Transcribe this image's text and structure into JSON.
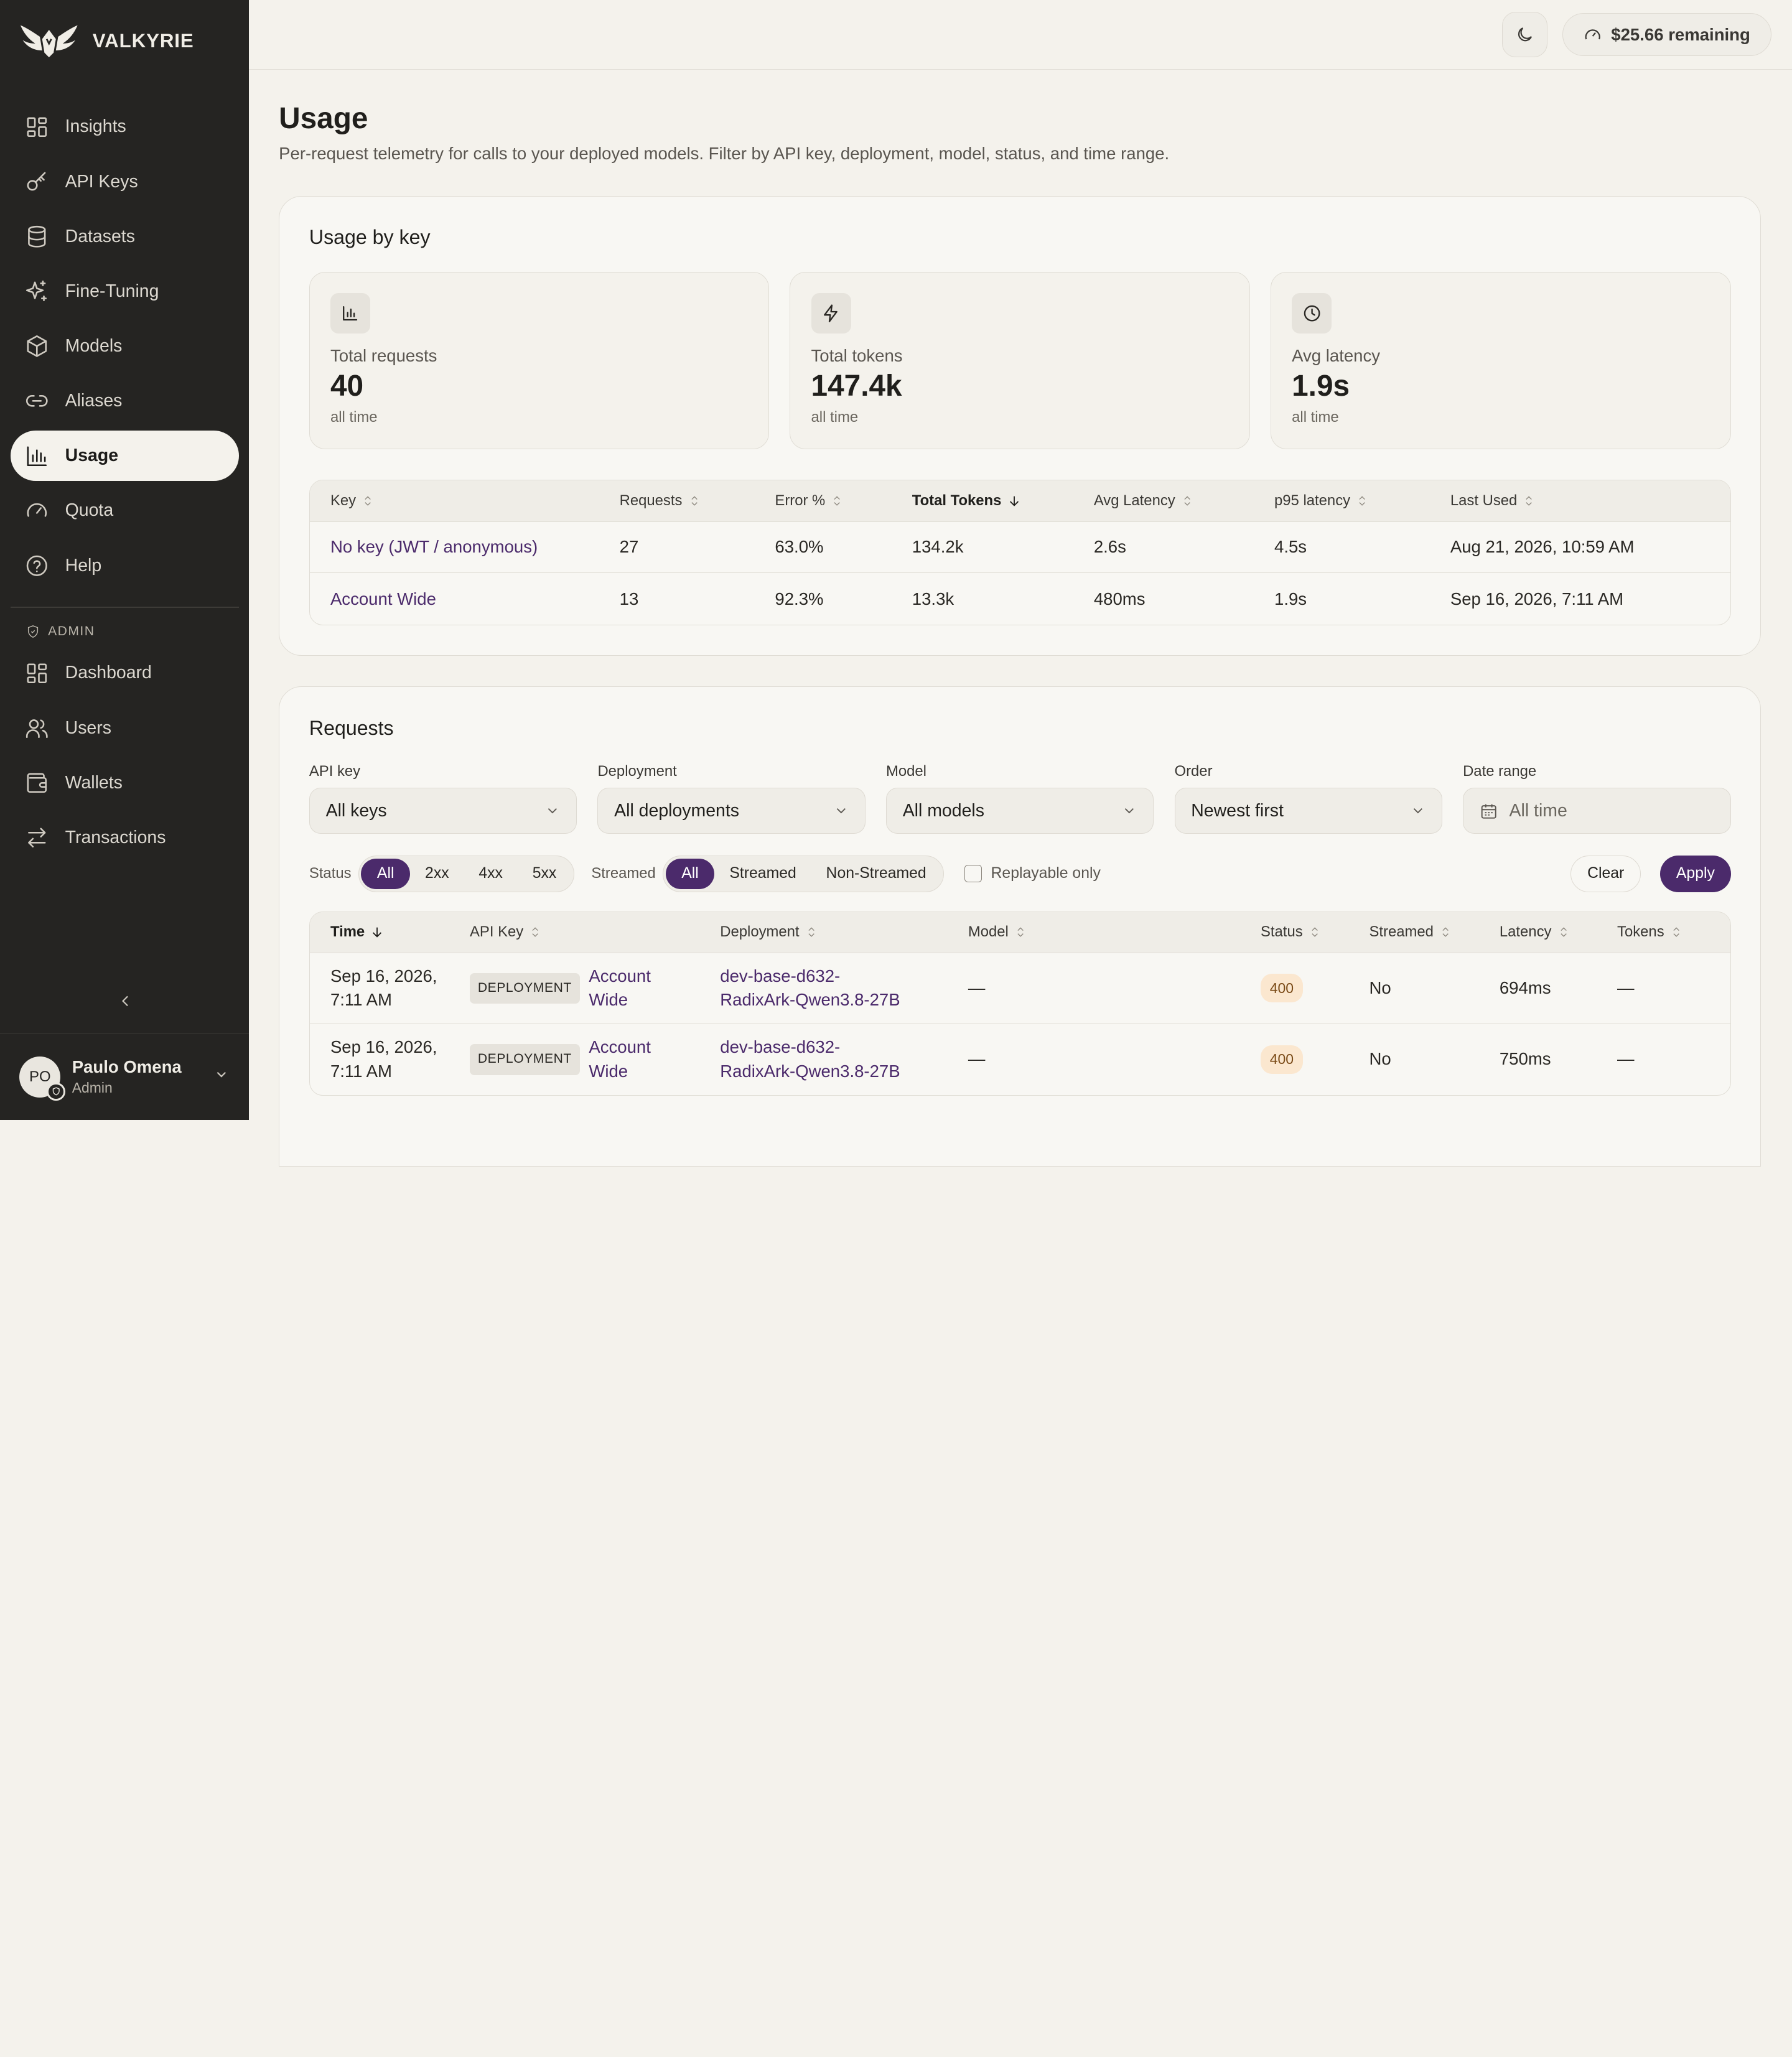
{
  "brand": {
    "name": "VALKYRIE"
  },
  "sidebar": {
    "items": [
      {
        "label": "Insights",
        "icon": "grid-icon"
      },
      {
        "label": "API Keys",
        "icon": "key-icon"
      },
      {
        "label": "Datasets",
        "icon": "database-icon"
      },
      {
        "label": "Fine-Tuning",
        "icon": "sparkles-icon"
      },
      {
        "label": "Models",
        "icon": "cube-icon"
      },
      {
        "label": "Aliases",
        "icon": "link-icon"
      },
      {
        "label": "Usage",
        "icon": "bar-chart-icon",
        "active": true
      },
      {
        "label": "Quota",
        "icon": "gauge-icon"
      },
      {
        "label": "Help",
        "icon": "help-circle-icon"
      }
    ],
    "admin_label": "ADMIN",
    "admin_items": [
      {
        "label": "Dashboard",
        "icon": "grid-icon"
      },
      {
        "label": "Users",
        "icon": "users-icon"
      },
      {
        "label": "Wallets",
        "icon": "wallet-icon"
      },
      {
        "label": "Transactions",
        "icon": "arrows-icon"
      }
    ]
  },
  "user": {
    "initials": "PO",
    "name": "Paulo Omena",
    "role": "Admin"
  },
  "topbar": {
    "credit": "$25.66 remaining"
  },
  "page": {
    "title": "Usage",
    "subtitle": "Per-request telemetry for calls to your deployed models. Filter by API key, deployment, model, status, and time range."
  },
  "usage_by_key": {
    "title": "Usage by key",
    "stats": [
      {
        "label": "Total requests",
        "value": "40",
        "foot": "all time",
        "icon": "bar-chart-icon"
      },
      {
        "label": "Total tokens",
        "value": "147.4k",
        "foot": "all time",
        "icon": "bolt-icon"
      },
      {
        "label": "Avg latency",
        "value": "1.9s",
        "foot": "all time",
        "icon": "clock-icon"
      }
    ],
    "columns": [
      "Key",
      "Requests",
      "Error %",
      "Total Tokens",
      "Avg Latency",
      "p95 latency",
      "Last Used"
    ],
    "rows": [
      [
        "No key (JWT / anonymous)",
        "27",
        "63.0%",
        "134.2k",
        "2.6s",
        "4.5s",
        "Aug 21, 2026, 10:59 AM"
      ],
      [
        "Account Wide",
        "13",
        "92.3%",
        "13.3k",
        "480ms",
        "1.9s",
        "Sep 16, 2026, 7:11 AM"
      ]
    ]
  },
  "requests": {
    "title": "Requests",
    "filters": {
      "api_key": {
        "label": "API key",
        "value": "All keys"
      },
      "deployment": {
        "label": "Deployment",
        "value": "All deployments"
      },
      "model": {
        "label": "Model",
        "value": "All models"
      },
      "order": {
        "label": "Order",
        "value": "Newest first"
      },
      "date_range": {
        "label": "Date range",
        "placeholder": "All time"
      }
    },
    "status_label": "Status",
    "status_options": [
      "All",
      "2xx",
      "4xx",
      "5xx"
    ],
    "streamed_label": "Streamed",
    "streamed_options": [
      "All",
      "Streamed",
      "Non-Streamed"
    ],
    "replayable_label": "Replayable only",
    "clear_label": "Clear",
    "apply_label": "Apply",
    "columns": [
      "Time",
      "API Key",
      "Deployment",
      "Model",
      "Status",
      "Streamed",
      "Latency",
      "Tokens"
    ],
    "rows": [
      {
        "time": [
          "Sep 16, 2026,",
          "7:11 AM"
        ],
        "tag": "DEPLOYMENT",
        "key": [
          "Account",
          "Wide"
        ],
        "deployment": [
          "dev-base-d632-",
          "RadixArk-Qwen3.8-27B"
        ],
        "model": "—",
        "status": "400",
        "streamed": "No",
        "latency": "694ms",
        "tokens": "—"
      },
      {
        "time": [
          "Sep 16, 2026,",
          "7:11 AM"
        ],
        "tag": "DEPLOYMENT",
        "key": [
          "Account",
          "Wide"
        ],
        "deployment": [
          "dev-base-d632-",
          "RadixArk-Qwen3.8-27B"
        ],
        "model": "—",
        "status": "400",
        "streamed": "No",
        "latency": "750ms",
        "tokens": "—"
      }
    ]
  },
  "colors": {
    "sidebar_bg": "#252422",
    "accent": "#4b2a6b",
    "page_bg": "#f4f2ec",
    "status_warn_bg": "#fbe7cf"
  }
}
